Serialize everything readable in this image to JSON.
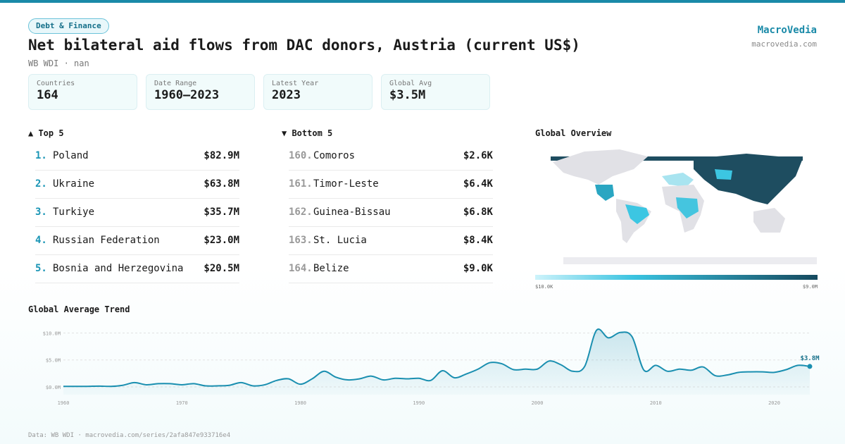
{
  "header": {
    "badge": "Debt & Finance",
    "title": "Net bilateral aid flows from DAC donors, Austria (current US$)",
    "subtitle": "WB WDI · nan",
    "brand": "MacroVedia",
    "site": "macrovedia.com"
  },
  "stats": [
    {
      "label": "Countries",
      "value": "164"
    },
    {
      "label": "Date Range",
      "value": "1960–2023"
    },
    {
      "label": "Latest Year",
      "value": "2023"
    },
    {
      "label": "Global Avg",
      "value": "$3.5M"
    }
  ],
  "top": {
    "heading": "▲ Top 5",
    "rows": [
      {
        "rank": "1.",
        "name": "Poland",
        "value": "$82.9M"
      },
      {
        "rank": "2.",
        "name": "Ukraine",
        "value": "$63.8M"
      },
      {
        "rank": "3.",
        "name": "Turkiye",
        "value": "$35.7M"
      },
      {
        "rank": "4.",
        "name": "Russian Federation",
        "value": "$23.0M"
      },
      {
        "rank": "5.",
        "name": "Bosnia and Herzegovina",
        "value": "$20.5M"
      }
    ]
  },
  "bottom": {
    "heading": "▼ Bottom 5",
    "rows": [
      {
        "rank": "160.",
        "name": "Comoros",
        "value": "$2.6K"
      },
      {
        "rank": "161.",
        "name": "Timor-Leste",
        "value": "$6.4K"
      },
      {
        "rank": "162.",
        "name": "Guinea-Bissau",
        "value": "$6.8K"
      },
      {
        "rank": "163.",
        "name": "St. Lucia",
        "value": "$8.4K"
      },
      {
        "rank": "164.",
        "name": "Belize",
        "value": "$9.0K"
      }
    ]
  },
  "map": {
    "heading": "Global Overview",
    "legend_min": "$10.0K",
    "legend_max": "$9.0M"
  },
  "chart_data": {
    "type": "line",
    "title": "Global Average Trend",
    "color": "#1a8fb0",
    "x": [
      1960,
      1961,
      1962,
      1963,
      1964,
      1965,
      1966,
      1967,
      1968,
      1969,
      1970,
      1971,
      1972,
      1973,
      1974,
      1975,
      1976,
      1977,
      1978,
      1979,
      1980,
      1981,
      1982,
      1983,
      1984,
      1985,
      1986,
      1987,
      1988,
      1989,
      1990,
      1991,
      1992,
      1993,
      1994,
      1995,
      1996,
      1997,
      1998,
      1999,
      2000,
      2001,
      2002,
      2003,
      2004,
      2005,
      2006,
      2007,
      2008,
      2009,
      2010,
      2011,
      2012,
      2013,
      2014,
      2015,
      2016,
      2017,
      2018,
      2019,
      2020,
      2021,
      2022,
      2023
    ],
    "values": [
      0.1,
      0.1,
      0.1,
      0.15,
      0.1,
      0.3,
      0.8,
      0.4,
      0.6,
      0.6,
      0.4,
      0.6,
      0.2,
      0.2,
      0.3,
      0.8,
      0.2,
      0.4,
      1.2,
      1.5,
      0.5,
      1.5,
      2.9,
      1.8,
      1.3,
      1.5,
      2.0,
      1.3,
      1.6,
      1.5,
      1.6,
      1.2,
      3.0,
      1.7,
      2.4,
      3.3,
      4.5,
      4.3,
      3.2,
      3.3,
      3.3,
      4.8,
      4.1,
      2.9,
      3.8,
      10.5,
      9.1,
      10.1,
      9.3,
      3.1,
      4.0,
      2.9,
      3.3,
      3.1,
      3.7,
      2.1,
      2.2,
      2.7,
      2.8,
      2.8,
      2.7,
      3.2,
      4.0,
      3.8
    ],
    "end_label": "$3.8M",
    "xlim": [
      1960,
      2023
    ],
    "xticks": [
      1960,
      1970,
      1980,
      1990,
      2000,
      2010,
      2020
    ],
    "ylim": [
      0,
      11.5
    ],
    "yticks": [
      {
        "value": 0,
        "label": "$0.0M"
      },
      {
        "value": 5,
        "label": "$5.0M"
      },
      {
        "value": 10,
        "label": "$10.0M"
      }
    ],
    "grid": true
  },
  "footer": "Data: WB WDI · macrovedia.com/series/2afa847e933716e4"
}
